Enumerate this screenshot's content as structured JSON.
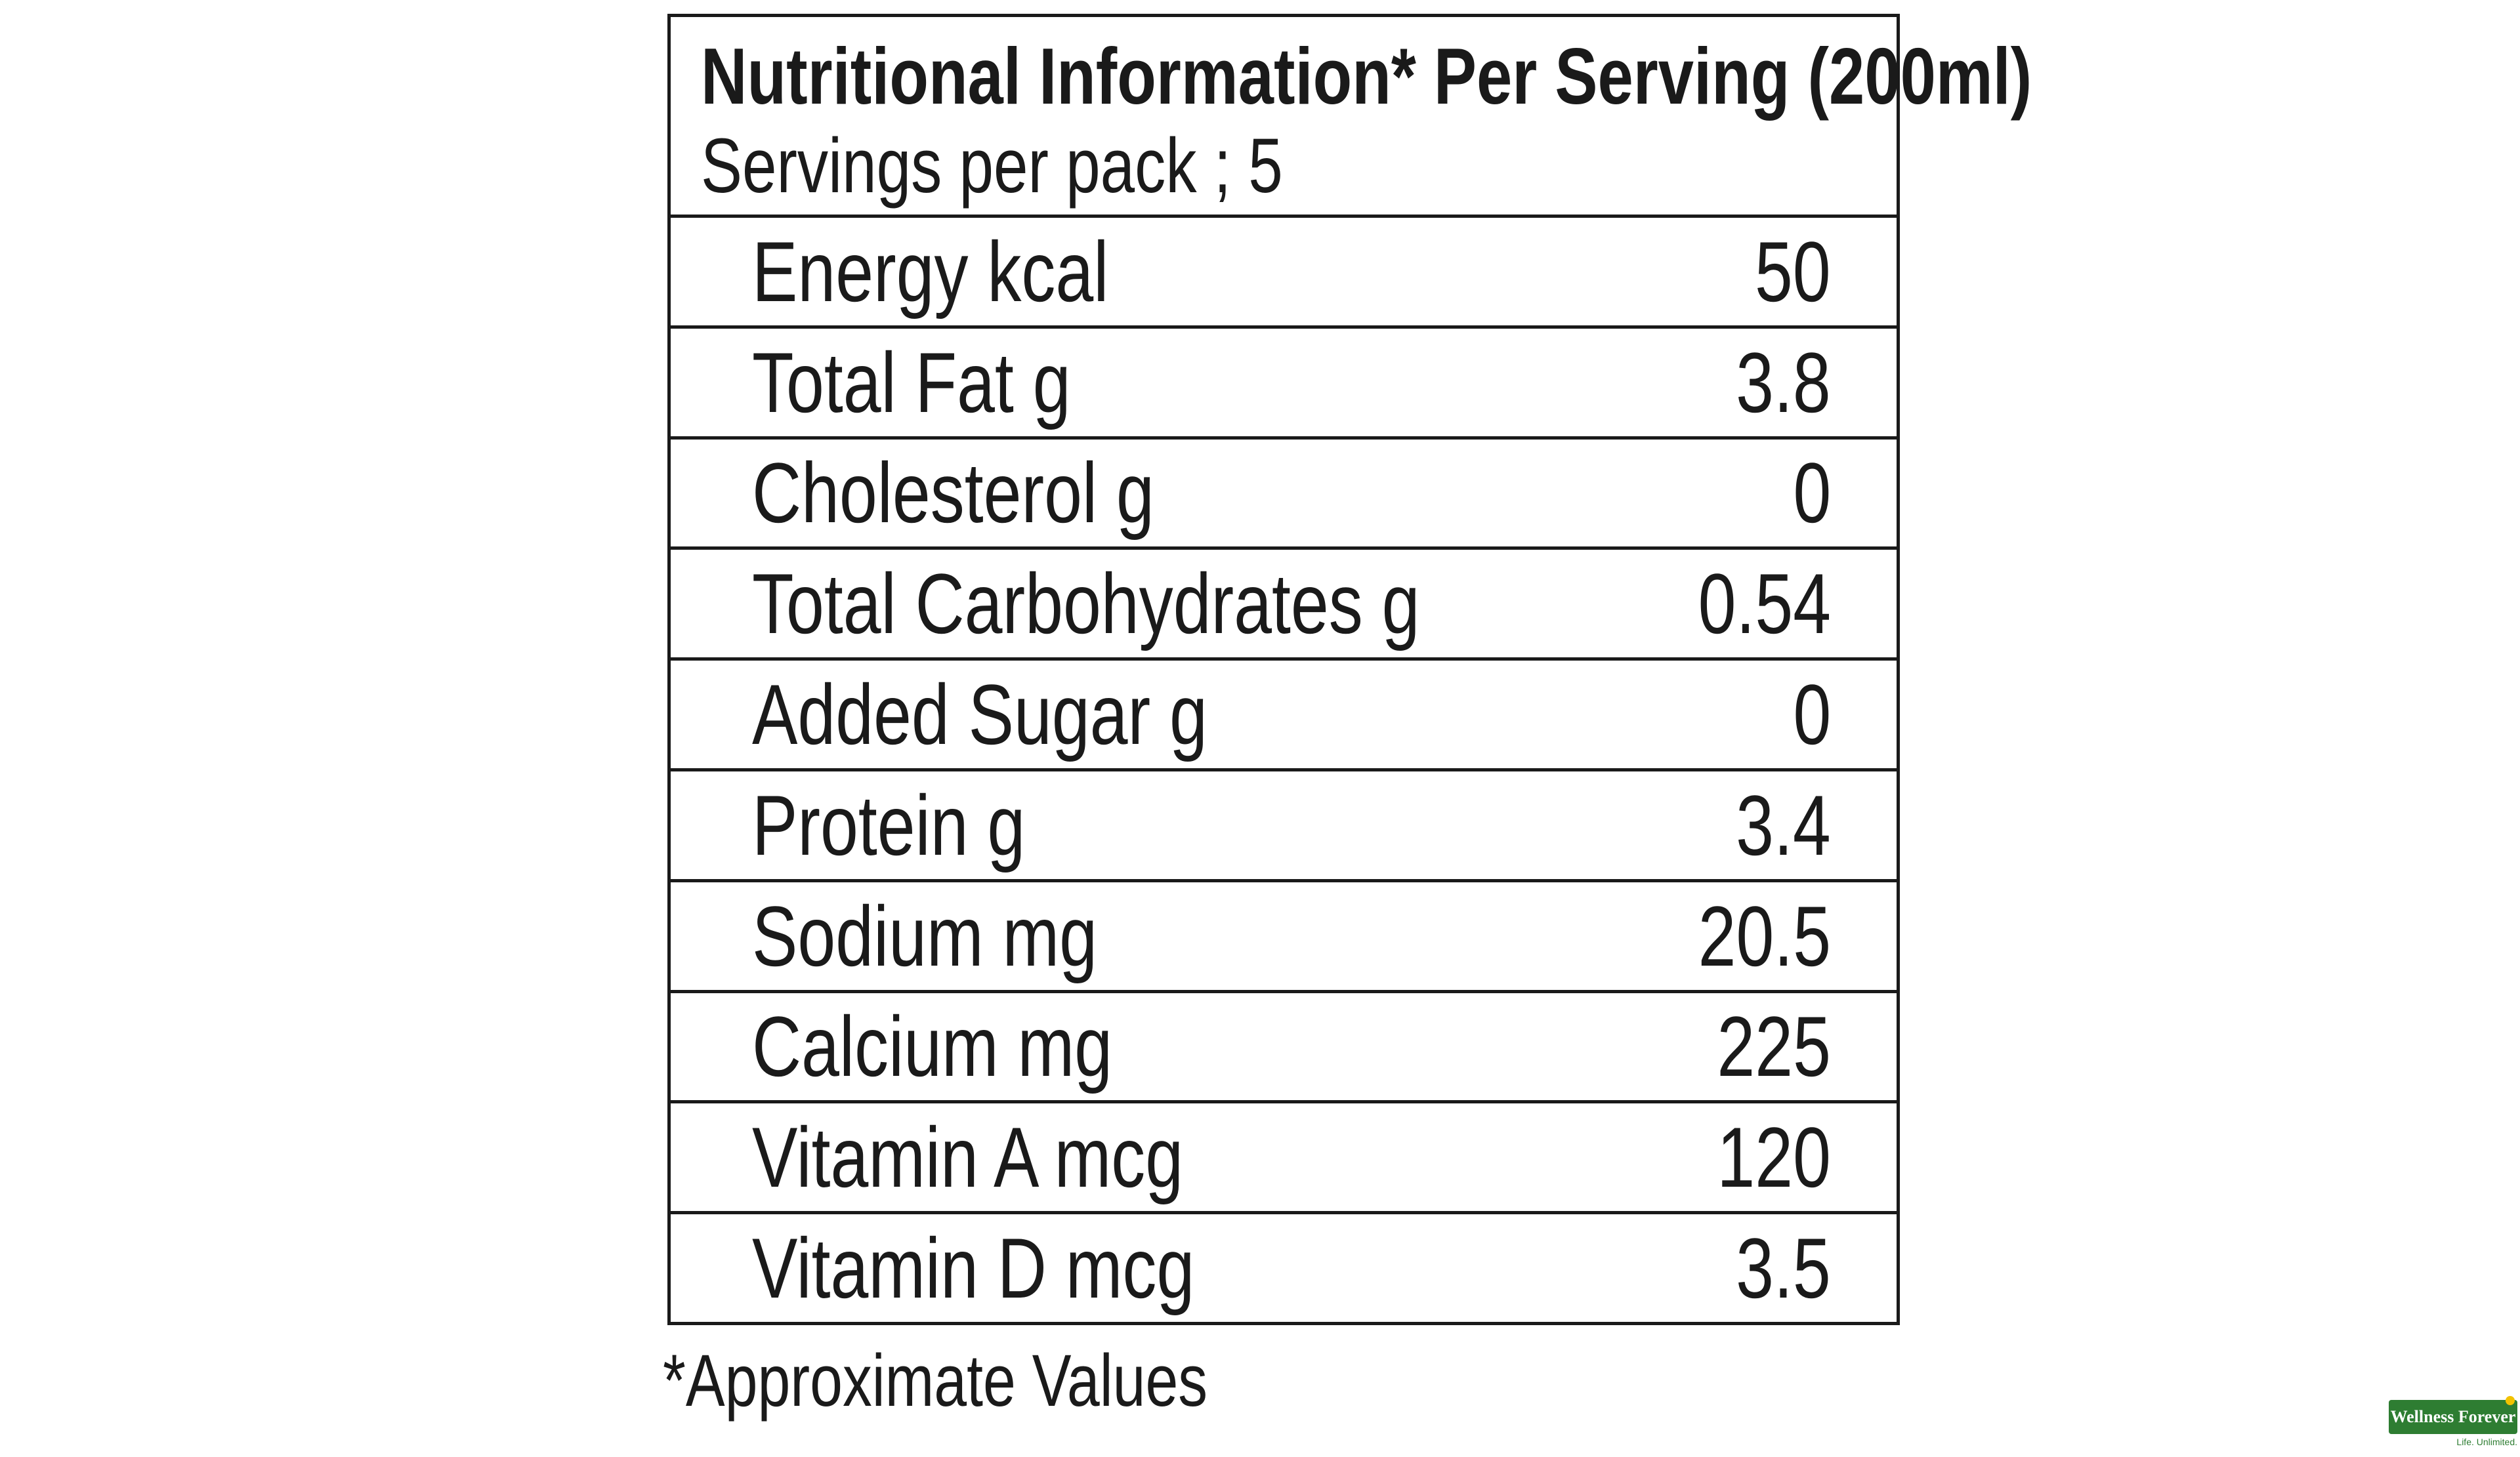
{
  "header": {
    "title": "Nutritional Information* Per Serving (200ml)",
    "servings": "Servings per pack ; 5"
  },
  "rows": [
    {
      "label": "Energy kcal",
      "value": "50"
    },
    {
      "label": "Total Fat g",
      "value": "3.8"
    },
    {
      "label": "Cholesterol g",
      "value": "0"
    },
    {
      "label": "Total Carbohydrates g",
      "value": "0.54"
    },
    {
      "label": "Added Sugar g",
      "value": "0"
    },
    {
      "label": "Protein g",
      "value": "3.4"
    },
    {
      "label": "Sodium mg",
      "value": "20.5"
    },
    {
      "label": "Calcium mg",
      "value": "225"
    },
    {
      "label": "Vitamin A mcg",
      "value": "120"
    },
    {
      "label": "Vitamin D mcg",
      "value": "3.5"
    }
  ],
  "footnote": "*Approximate Values",
  "watermark": {
    "brand": "Wellness Forever",
    "tagline": "Life. Unlimited.",
    "color": "#2e7d32"
  }
}
